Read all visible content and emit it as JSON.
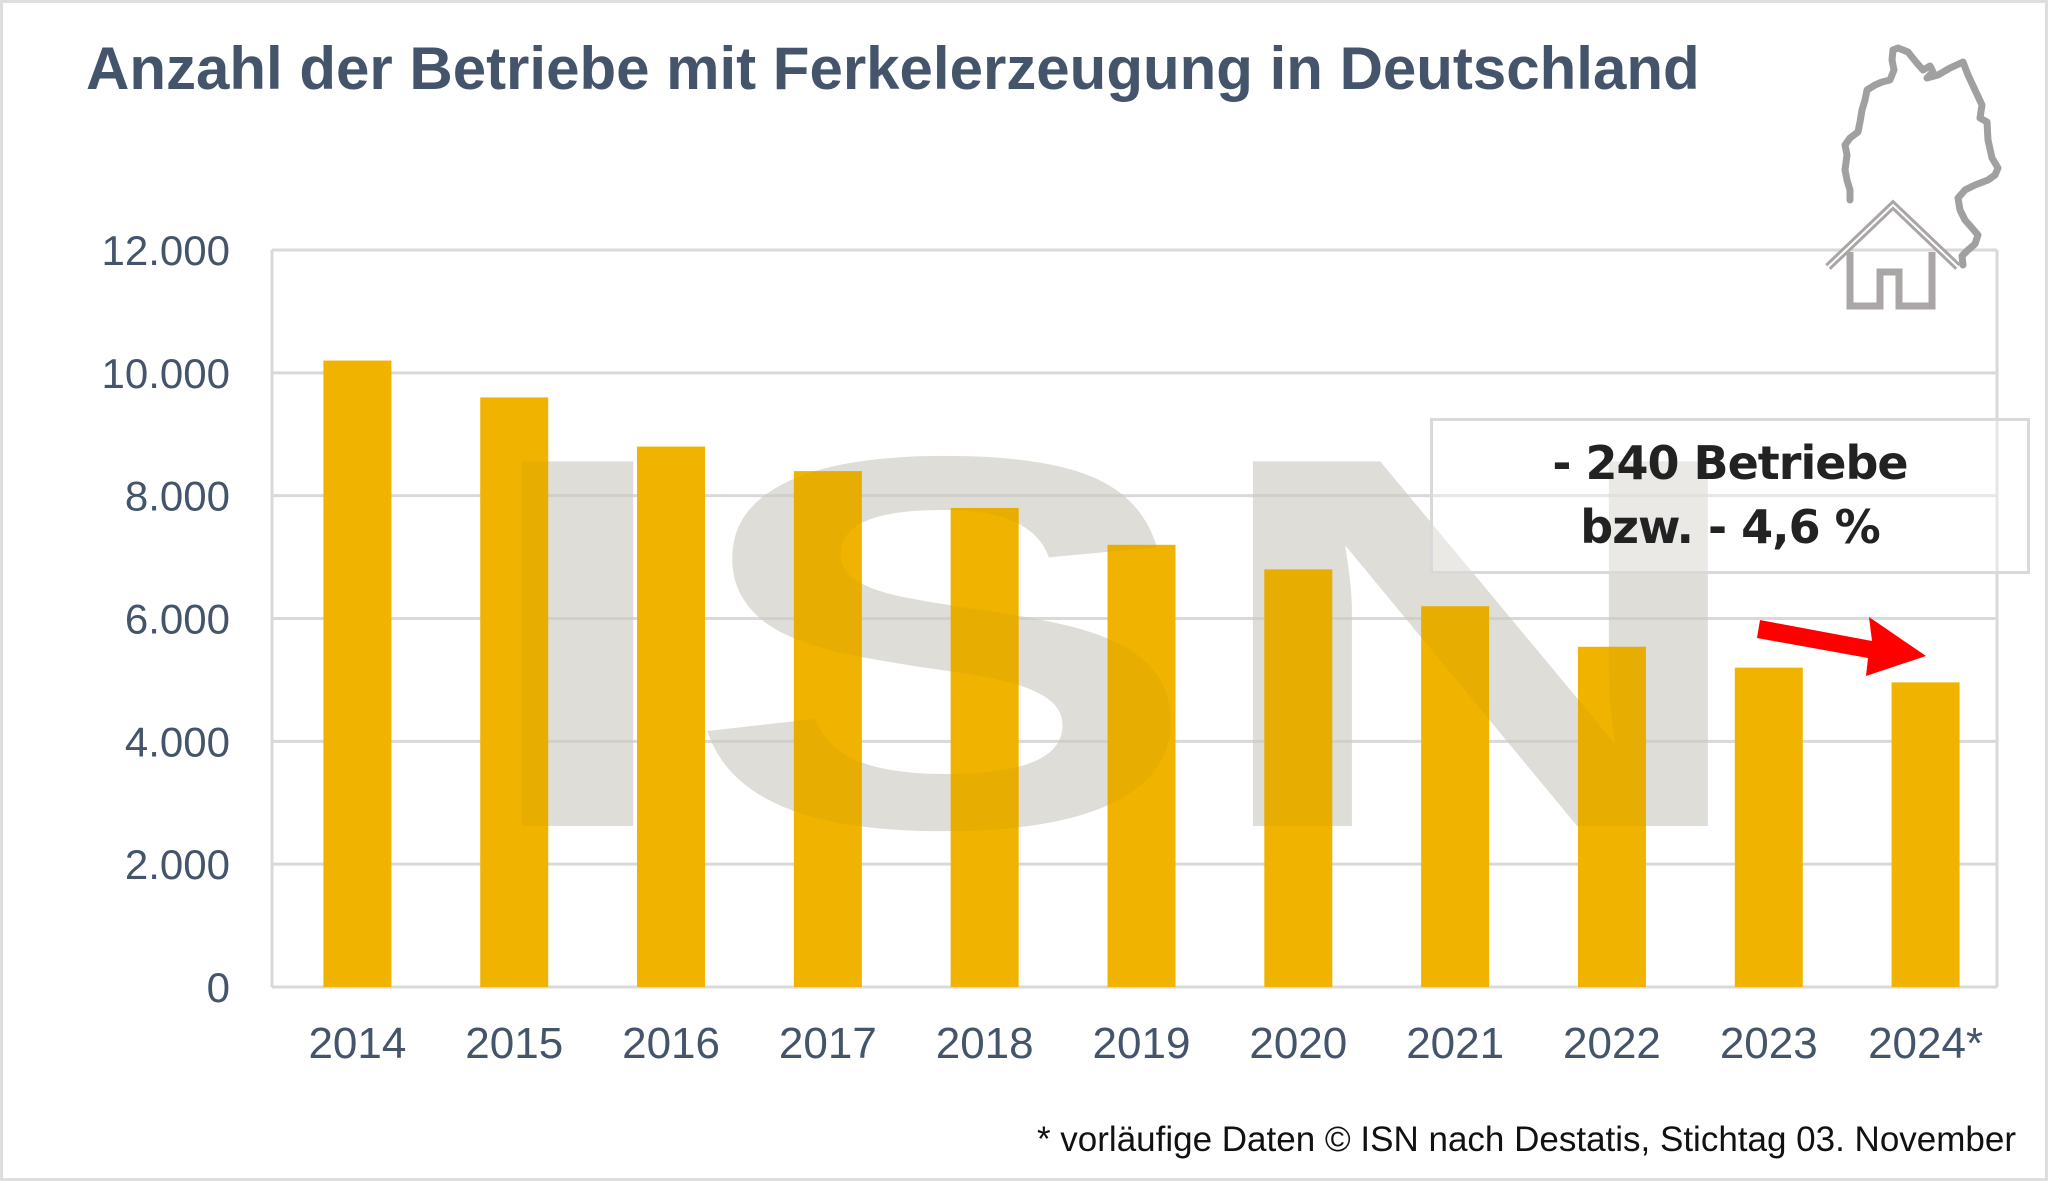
{
  "title": "Anzahl der Betriebe mit Ferkelerzeugung in Deutschland",
  "callout": {
    "line1": "- 240 Betriebe",
    "line2": "bzw. - 4,6 %"
  },
  "footer": "* vorläufige Daten © ISN nach Destatis, Stichtag 03. November",
  "watermark": "ISN",
  "icons": [
    "germany-map-icon",
    "house-icon"
  ],
  "colors": {
    "bar": "#f0b400",
    "title": "#44546a",
    "axis_text": "#44546a",
    "grid": "#d9d9d9",
    "arrow": "#ff0000",
    "watermark": "#e8e8e8"
  },
  "chart_data": {
    "type": "bar",
    "title": "Anzahl der Betriebe mit Ferkelerzeugung in Deutschland",
    "xlabel": "",
    "ylabel": "",
    "categories": [
      "2014",
      "2015",
      "2016",
      "2017",
      "2018",
      "2019",
      "2020",
      "2021",
      "2022",
      "2023",
      "2024*"
    ],
    "values": [
      10200,
      9600,
      8800,
      8400,
      7800,
      7200,
      6800,
      6200,
      5540,
      5200,
      4960
    ],
    "ylim": [
      0,
      12000
    ],
    "yticks": [
      0,
      2000,
      4000,
      6000,
      8000,
      10000,
      12000
    ],
    "ytick_labels": [
      "0",
      "2.000",
      "4.000",
      "6.000",
      "8.000",
      "10.000",
      "12.000"
    ],
    "grid": true,
    "legend": "none",
    "annotations": [
      {
        "text": "- 240 Betriebe bzw. - 4,6 %",
        "type": "callout-box",
        "placement": "top-right"
      },
      {
        "type": "arrow",
        "from": "2023",
        "to": "2024*",
        "color": "#ff0000"
      }
    ],
    "note": "* vorläufige Daten © ISN nach Destatis, Stichtag 03. November"
  }
}
